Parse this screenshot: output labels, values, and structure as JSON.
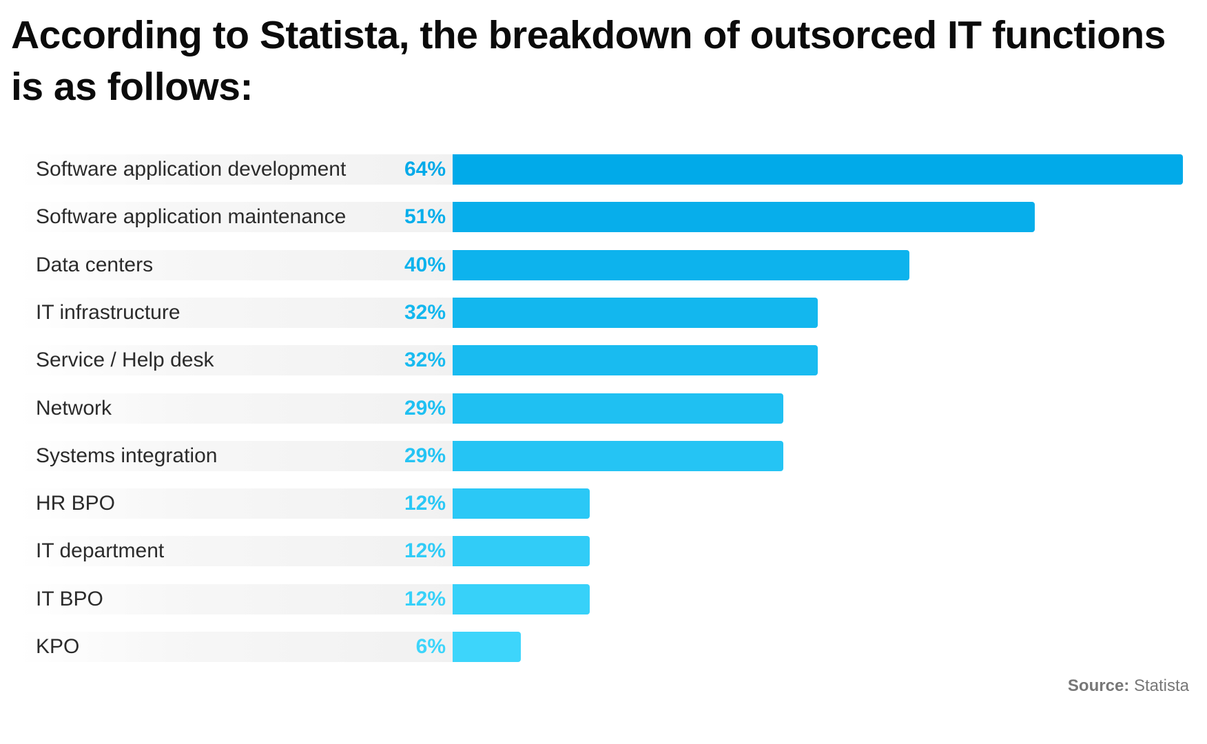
{
  "title": "According to Statista, the breakdown of outsorced IT functions is as follows:",
  "source": {
    "label": "Source:",
    "value": "Statista"
  },
  "colors": {
    "bar_max": "#01aae9",
    "bar_min": "#3dd5fb",
    "label_text": "#2b2b2b"
  },
  "chart_data": {
    "type": "bar",
    "orientation": "horizontal",
    "title": "According to Statista, the breakdown of outsorced IT functions is as follows:",
    "xlabel": "",
    "ylabel": "",
    "xlim": [
      0,
      64
    ],
    "grid": false,
    "categories": [
      "Software application development",
      "Software application maintenance",
      "Data centers",
      "IT infrastructure",
      "Service / Help desk",
      "Network",
      "Systems integration",
      "HR BPO",
      "IT department",
      "IT BPO",
      "KPO"
    ],
    "values": [
      64,
      51,
      40,
      32,
      32,
      29,
      29,
      12,
      12,
      12,
      6
    ],
    "value_labels": [
      "64%",
      "51%",
      "40%",
      "32%",
      "32%",
      "29%",
      "29%",
      "12%",
      "12%",
      "12%",
      "6%"
    ]
  }
}
